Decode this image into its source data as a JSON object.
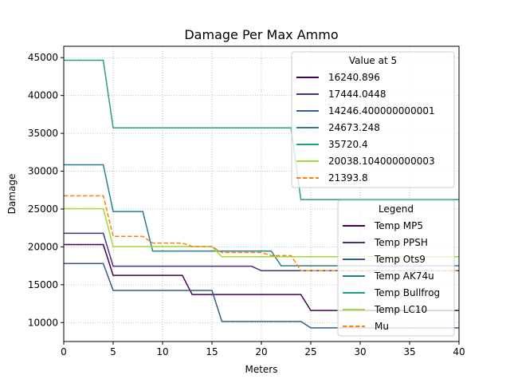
{
  "chart_data": {
    "type": "line",
    "title": "Damage Per Max Ammo",
    "xlabel": "Meters",
    "ylabel": "Damage",
    "xlim": [
      0,
      40
    ],
    "ylim": [
      7500,
      46500
    ],
    "xticks": [
      0,
      5,
      10,
      15,
      20,
      25,
      30,
      35,
      40
    ],
    "yticks": [
      10000,
      15000,
      20000,
      25000,
      30000,
      35000,
      40000,
      45000
    ],
    "grid": true,
    "series": [
      {
        "name": "Temp MP5",
        "color": "#440154",
        "style": "solid",
        "points": [
          [
            0,
            20300
          ],
          [
            4,
            20300
          ],
          [
            5,
            16240.896
          ],
          [
            12,
            16240.896
          ],
          [
            13,
            13700
          ],
          [
            24,
            13700
          ],
          [
            25,
            11600
          ],
          [
            40,
            11600
          ]
        ]
      },
      {
        "name": "Temp PPSH",
        "color": "#46327e",
        "style": "solid",
        "points": [
          [
            0,
            21800
          ],
          [
            4,
            21800
          ],
          [
            5,
            17444.0448
          ],
          [
            19,
            17444.0448
          ],
          [
            20,
            16850
          ],
          [
            40,
            16850
          ]
        ]
      },
      {
        "name": "Temp Ots9",
        "color": "#365c8d",
        "style": "solid",
        "points": [
          [
            0,
            17800
          ],
          [
            4,
            17800
          ],
          [
            5,
            14246.400000000001
          ],
          [
            15,
            14246.400000000001
          ],
          [
            16,
            10150
          ],
          [
            24,
            10150
          ],
          [
            25,
            9300
          ],
          [
            40,
            9300
          ]
        ]
      },
      {
        "name": "Temp AK74u",
        "color": "#277f8e",
        "style": "solid",
        "points": [
          [
            0,
            30850
          ],
          [
            4,
            30850
          ],
          [
            5,
            24673.248
          ],
          [
            8,
            24673.248
          ],
          [
            9,
            19450
          ],
          [
            21,
            19450
          ],
          [
            22,
            17500
          ],
          [
            40,
            17500
          ]
        ]
      },
      {
        "name": "Temp Bullfrog",
        "color": "#1fa187",
        "style": "solid",
        "points": [
          [
            0,
            44650
          ],
          [
            4,
            44650
          ],
          [
            5,
            35720.4
          ],
          [
            23,
            35720.4
          ],
          [
            24,
            26250
          ],
          [
            40,
            26250
          ]
        ]
      },
      {
        "name": "Temp LC10",
        "color": "#9fda3a",
        "style": "solid",
        "points": [
          [
            0,
            25050
          ],
          [
            4,
            25050
          ],
          [
            5,
            20038.104000000003
          ],
          [
            15,
            20038.104000000003
          ],
          [
            16,
            18700
          ],
          [
            40,
            18700
          ]
        ]
      },
      {
        "name": "Mu",
        "color": "#ff7f0e",
        "style": "dashed",
        "points": [
          [
            0,
            26750
          ],
          [
            4,
            26750
          ],
          [
            5,
            21393.8
          ],
          [
            8,
            21393.8
          ],
          [
            9,
            20500
          ],
          [
            12,
            20500
          ],
          [
            13,
            20050
          ],
          [
            15,
            20050
          ],
          [
            16,
            19250
          ],
          [
            20,
            19250
          ],
          [
            21,
            18850
          ],
          [
            23,
            18850
          ],
          [
            24,
            16850
          ],
          [
            40,
            16850
          ]
        ]
      }
    ],
    "legend_values": {
      "title": "Value at 5",
      "location": "upper right",
      "entries": [
        "16240.896",
        "17444.0448",
        "14246.400000000001",
        "24673.248",
        "35720.4",
        "20038.104000000003",
        "21393.8"
      ]
    },
    "legend_series": {
      "title": "Legend",
      "location": "lower right",
      "entries": [
        "Temp MP5",
        "Temp PPSH",
        "Temp Ots9",
        "Temp AK74u",
        "Temp Bullfrog",
        "Temp LC10",
        "Mu"
      ]
    }
  }
}
